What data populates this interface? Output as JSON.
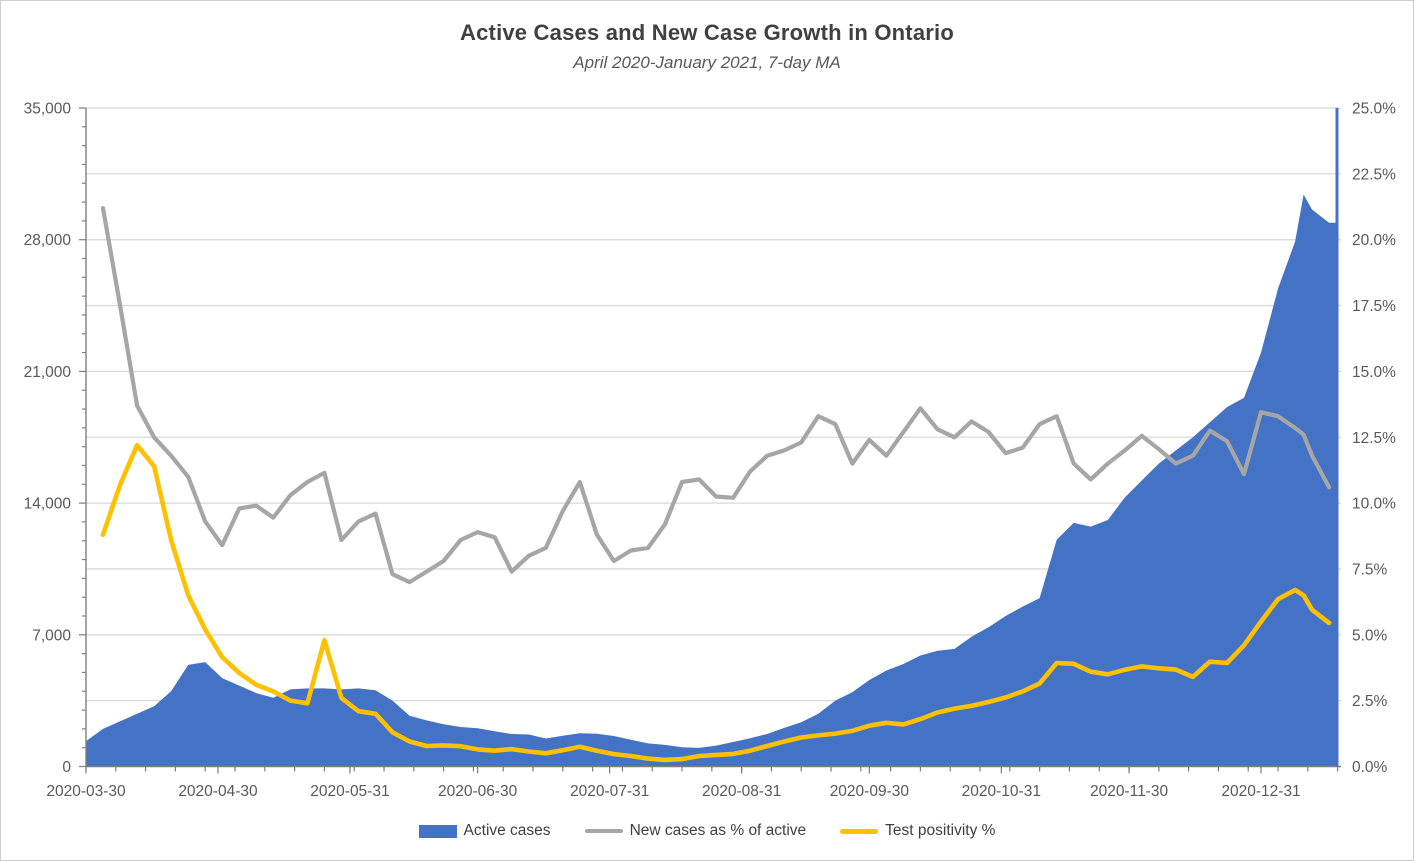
{
  "title": "Active Cases and New Case Growth in Ontario",
  "subtitle": "April 2020-January 2021, 7-day MA",
  "colors": {
    "active_area": "#4472C4",
    "new_cases_line": "#A6A6A6",
    "positivity_line": "#FFC000",
    "gridline": "#D9D9D9",
    "axis_line": "#7F7F7F",
    "label_text": "#595959",
    "title_text": "#404040"
  },
  "chart_data": {
    "type": "area+line",
    "title": "Active Cases and New Case Growth in Ontario",
    "subtitle": "April 2020-January 2021, 7-day MA",
    "x_unit": "days since 2020-03-30",
    "days": [
      0,
      4,
      8,
      12,
      16,
      20,
      24,
      28,
      32,
      36,
      40,
      44,
      48,
      52,
      56,
      60,
      64,
      68,
      72,
      76,
      80,
      84,
      88,
      92,
      96,
      100,
      104,
      108,
      112,
      116,
      120,
      124,
      128,
      132,
      136,
      140,
      144,
      148,
      152,
      156,
      160,
      164,
      168,
      172,
      176,
      180,
      184,
      188,
      192,
      196,
      200,
      204,
      208,
      212,
      216,
      220,
      224,
      228,
      232,
      236,
      240,
      244,
      248,
      252,
      256,
      260,
      264,
      268,
      272,
      276,
      280,
      284,
      286,
      288,
      292
    ],
    "series": [
      {
        "name": "Active cases",
        "type": "area",
        "axis": "left",
        "color": "#4472C4",
        "values": [
          1350,
          2000,
          2400,
          2800,
          3200,
          4000,
          5400,
          5550,
          4700,
          4300,
          3900,
          3650,
          4100,
          4150,
          4150,
          4100,
          4150,
          4050,
          3500,
          2700,
          2450,
          2250,
          2100,
          2030,
          1870,
          1730,
          1700,
          1490,
          1630,
          1770,
          1740,
          1620,
          1420,
          1230,
          1150,
          1020,
          990,
          1110,
          1300,
          1500,
          1730,
          2050,
          2350,
          2800,
          3500,
          3950,
          4600,
          5100,
          5450,
          5900,
          6150,
          6250,
          6900,
          7400,
          8000,
          8500,
          8950,
          12050,
          12950,
          12750,
          13100,
          14300,
          15200,
          16100,
          16800,
          17500,
          18300,
          19100,
          19600,
          22000,
          25400,
          27900,
          30400,
          29600,
          28900
        ]
      },
      {
        "name": "New cases as % of active",
        "type": "line",
        "axis": "right",
        "color": "#A6A6A6",
        "values": [
          null,
          21.2,
          17.5,
          13.7,
          12.5,
          11.8,
          11.0,
          9.3,
          8.4,
          9.8,
          9.9,
          9.45,
          10.3,
          10.8,
          11.15,
          8.6,
          9.3,
          9.6,
          7.3,
          7.0,
          7.4,
          7.8,
          8.6,
          8.9,
          8.7,
          7.4,
          8.0,
          8.3,
          9.7,
          10.8,
          8.8,
          7.8,
          8.2,
          8.3,
          9.2,
          10.8,
          10.9,
          10.25,
          10.2,
          11.2,
          11.8,
          12.0,
          12.3,
          13.3,
          13.0,
          11.5,
          12.4,
          11.8,
          12.7,
          13.6,
          12.8,
          12.5,
          13.1,
          12.7,
          11.9,
          12.1,
          13.0,
          13.3,
          11.5,
          10.9,
          11.5,
          12.0,
          12.55,
          12.05,
          11.5,
          11.8,
          12.75,
          12.35,
          11.1,
          13.45,
          13.3,
          12.85,
          12.6,
          11.8,
          10.6
        ]
      },
      {
        "name": "Test positivity %",
        "type": "line",
        "axis": "right",
        "color": "#FFC000",
        "values": [
          null,
          8.8,
          10.7,
          12.2,
          11.4,
          8.6,
          6.5,
          5.2,
          4.15,
          3.55,
          3.1,
          2.85,
          2.5,
          2.4,
          4.8,
          2.6,
          2.1,
          2.0,
          1.3,
          0.95,
          0.78,
          0.8,
          0.77,
          0.65,
          0.6,
          0.66,
          0.57,
          0.5,
          0.62,
          0.75,
          0.6,
          0.47,
          0.4,
          0.3,
          0.25,
          0.28,
          0.4,
          0.44,
          0.48,
          0.6,
          0.78,
          0.95,
          1.1,
          1.18,
          1.25,
          1.35,
          1.55,
          1.66,
          1.6,
          1.8,
          2.05,
          2.2,
          2.3,
          2.45,
          2.62,
          2.85,
          3.15,
          3.93,
          3.9,
          3.6,
          3.5,
          3.67,
          3.8,
          3.73,
          3.68,
          3.4,
          3.98,
          3.93,
          4.6,
          5.5,
          6.35,
          6.7,
          6.5,
          5.95,
          5.45
        ]
      }
    ],
    "left_axis": {
      "min": 0,
      "max": 35000,
      "major_step": 7000,
      "minor_step": 1000,
      "tick_labels": [
        "0",
        "7,000",
        "14,000",
        "21,000",
        "28,000",
        "35,000"
      ]
    },
    "right_axis": {
      "min": 0,
      "max": 25,
      "major_step": 2.5,
      "tick_labels": [
        "0.0%",
        "2.5%",
        "5.0%",
        "7.5%",
        "10.0%",
        "12.5%",
        "15.0%",
        "17.5%",
        "20.0%",
        "22.5%",
        "25.0%"
      ]
    },
    "x_axis": {
      "minor_step_days": 7,
      "major_ticks": [
        {
          "day": 0,
          "label": "2020-03-30"
        },
        {
          "day": 31,
          "label": "2020-04-30"
        },
        {
          "day": 62,
          "label": "2020-05-31"
        },
        {
          "day": 92,
          "label": "2020-06-30"
        },
        {
          "day": 123,
          "label": "2020-07-31"
        },
        {
          "day": 154,
          "label": "2020-08-31"
        },
        {
          "day": 184,
          "label": "2020-09-30"
        },
        {
          "day": 215,
          "label": "2020-10-31"
        },
        {
          "day": 245,
          "label": "2020-11-30"
        },
        {
          "day": 276,
          "label": "2020-12-31"
        }
      ],
      "grid": false
    },
    "legend_position": "bottom"
  },
  "legend": {
    "items": [
      "Active cases",
      "New cases as % of active",
      "Test positivity %"
    ]
  }
}
